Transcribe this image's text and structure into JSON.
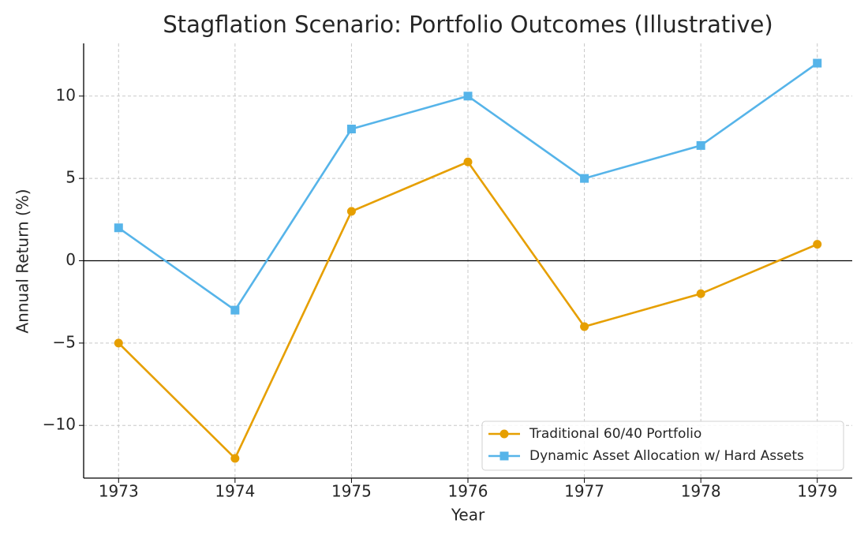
{
  "chart_data": {
    "type": "line",
    "title": "Stagflation Scenario: Portfolio Outcomes (Illustrative)",
    "x_label": "Year",
    "y_label": "Annual Return (%)",
    "x": [
      1973,
      1974,
      1975,
      1976,
      1977,
      1978,
      1979
    ],
    "series": [
      {
        "name": "Traditional 60/40 Portfolio",
        "color": "#E69F00",
        "marker": "circle",
        "values": [
          -5,
          -12,
          3,
          6,
          -4,
          -2,
          1
        ]
      },
      {
        "name": "Dynamic Asset Allocation w/ Hard Assets",
        "color": "#56B4E9",
        "marker": "square",
        "values": [
          2,
          -3,
          8,
          10,
          5,
          7,
          12
        ]
      }
    ],
    "xlim": [
      1972.7,
      1979.3
    ],
    "xticks": [
      1973,
      1974,
      1975,
      1976,
      1977,
      1978,
      1979
    ],
    "ylim": [
      -13.2,
      13.2
    ],
    "yticks": [
      {
        "value": -10,
        "label": "−10"
      },
      {
        "value": -5,
        "label": "−5"
      },
      0,
      5,
      10
    ],
    "reference_line": 0,
    "grid": true,
    "legend": "lower right"
  }
}
